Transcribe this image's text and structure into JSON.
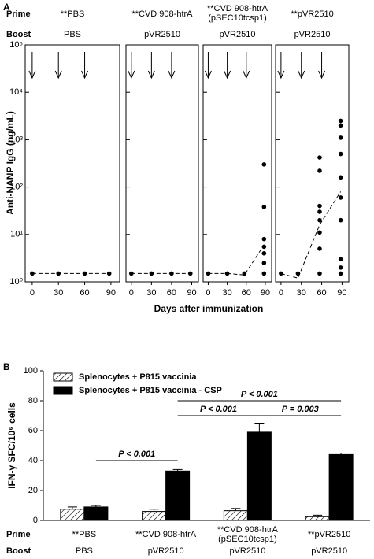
{
  "chart_data": [
    {
      "type": "scatter",
      "panel_label": "A",
      "row_labels": [
        "Prime",
        "Boost"
      ],
      "ylabel": "Anti-NANP IgG (ng/mL)",
      "xlabel": "Days after immunization",
      "yscale": "log",
      "ylim": [
        1,
        100000
      ],
      "yticks": [
        {
          "value": 1,
          "label": "10⁰"
        },
        {
          "value": 10,
          "label": "10¹"
        },
        {
          "value": 100,
          "label": "10²"
        },
        {
          "value": 1000,
          "label": "10³"
        },
        {
          "value": 10000,
          "label": "10⁴"
        },
        {
          "value": 100000,
          "label": "10⁵"
        }
      ],
      "immunization_days": [
        0,
        30,
        60
      ],
      "marker_color": "#000000",
      "panels": [
        {
          "prime": [
            "**PBS"
          ],
          "boost": "PBS",
          "xlim": [
            -8,
            100
          ],
          "xticks": [
            0,
            30,
            60,
            90
          ],
          "x": [
            0,
            30,
            60,
            88
          ],
          "y": [
            1.5,
            1.5,
            1.5,
            1.5
          ],
          "trend_x": [
            0,
            30,
            60,
            88
          ],
          "trend_y": [
            1.5,
            1.5,
            1.5,
            1.5
          ]
        },
        {
          "prime": [
            "**CVD 908-htrA"
          ],
          "boost": "pVR2510",
          "xlim": [
            -8,
            100
          ],
          "xticks": [
            0,
            30,
            60,
            90
          ],
          "x": [
            0,
            30,
            60,
            88
          ],
          "y": [
            1.5,
            1.5,
            1.5,
            1.5
          ],
          "trend_x": [
            0,
            30,
            60,
            88
          ],
          "trend_y": [
            1.5,
            1.5,
            1.5,
            1.5
          ]
        },
        {
          "prime": [
            "**CVD 908-htrA",
            "(pSEC10tcsp1)"
          ],
          "boost": "pVR2510",
          "xlim": [
            -8,
            100
          ],
          "xticks": [
            0,
            30,
            60,
            90
          ],
          "x": [
            0,
            30,
            57,
            88,
            88,
            88,
            88,
            88,
            88,
            88
          ],
          "y": [
            1.5,
            1.5,
            1.5,
            300,
            38,
            8,
            5.5,
            4,
            2.5,
            1.5
          ],
          "trend_x": [
            0,
            30,
            57,
            88
          ],
          "trend_y": [
            1.5,
            1.5,
            1.4,
            6
          ]
        },
        {
          "prime": [
            "**pVR2510"
          ],
          "boost": "pVR2510",
          "xlim": [
            -8,
            100
          ],
          "xticks": [
            0,
            30,
            60,
            90
          ],
          "x": [
            0,
            25,
            57,
            57,
            57,
            57,
            57,
            57,
            57,
            57,
            88,
            88,
            88,
            88,
            88,
            88,
            88,
            88,
            88,
            88
          ],
          "y": [
            1.5,
            1.5,
            420,
            220,
            40,
            30,
            20,
            11,
            5,
            1.5,
            2500,
            2000,
            1100,
            500,
            160,
            60,
            20,
            3,
            2,
            1.5
          ],
          "trend_x": [
            0,
            25,
            57,
            88
          ],
          "trend_y": [
            1.5,
            1.2,
            16,
            80
          ]
        }
      ]
    },
    {
      "type": "bar",
      "panel_label": "B",
      "row_labels": [
        "Prime",
        "Boost"
      ],
      "ylabel": "IFN-γ SFC/10⁶ cells",
      "ylim": [
        0,
        100
      ],
      "yticks": [
        0,
        20,
        40,
        60,
        80,
        100
      ],
      "categories": [
        {
          "prime": [
            "**PBS"
          ],
          "boost": "PBS"
        },
        {
          "prime": [
            "**CVD 908-htrA"
          ],
          "boost": "pVR2510"
        },
        {
          "prime": [
            "**CVD 908-htrA",
            "(pSEC10tcsp1)"
          ],
          "boost": "pVR2510"
        },
        {
          "prime": [
            "**pVR2510"
          ],
          "boost": "pVR2510"
        }
      ],
      "series": [
        {
          "name": "Splenocytes + P815 vaccinia",
          "color": "#ffffff",
          "hatch": true,
          "values": [
            7.5,
            6,
            6.5,
            2.5
          ],
          "errors": [
            1.5,
            1.5,
            1.5,
            1
          ]
        },
        {
          "name": "Splenocytes + P815 vaccinia - CSP",
          "color": "#000000",
          "hatch": false,
          "values": [
            9,
            33,
            59,
            44
          ],
          "errors": [
            1,
            1,
            6,
            1
          ]
        }
      ],
      "comparisons": [
        {
          "from": 0,
          "to": 1,
          "y": 40,
          "label": "P < 0.001"
        },
        {
          "from": 1,
          "to": 2,
          "y": 70,
          "label": "P < 0.001"
        },
        {
          "from": 2,
          "to": 3,
          "y": 70,
          "label": "P = 0.003"
        },
        {
          "from": 1,
          "to": 3,
          "y": 80,
          "label": "P < 0.001"
        }
      ]
    }
  ]
}
